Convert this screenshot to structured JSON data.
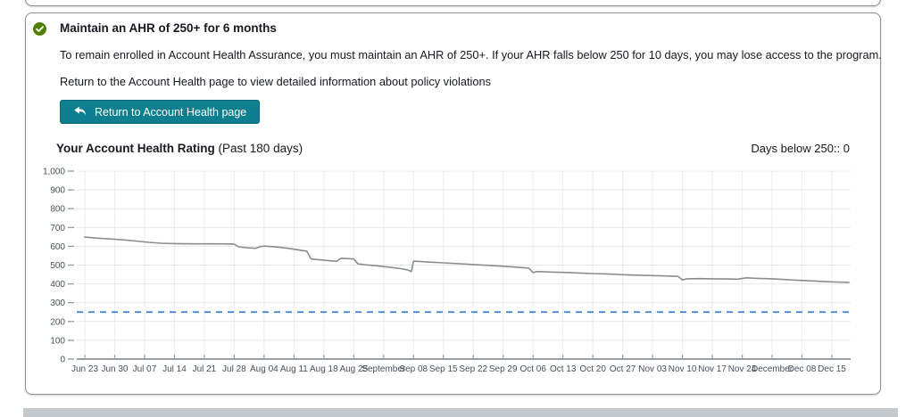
{
  "card": {
    "heading": "Maintain an AHR of 250+ for 6 months",
    "body_line1": "To remain enrolled in Account Health Assurance, you must maintain an AHR of 250+. If your AHR falls below 250 for 10 days, you may lose access to the program.",
    "body_line2": "Return to the Account Health page to view detailed information about policy violations",
    "button_label": "Return to Account Health page",
    "status_icon": "check-circle",
    "status_color": "#538000"
  },
  "chart_header": {
    "title_bold": "Your Account Health Rating",
    "title_suffix": "(Past 180 days)",
    "days_below_label": "Days below 250:: 0"
  },
  "chart_data": {
    "type": "line",
    "title": "Your Account Health Rating (Past 180 days)",
    "ylim": [
      0,
      1000
    ],
    "y_ticks": [
      0,
      100,
      200,
      300,
      400,
      500,
      600,
      700,
      800,
      900,
      1000
    ],
    "y_tick_labels": [
      "0",
      "100",
      "200",
      "300",
      "400",
      "500",
      "600",
      "700",
      "800",
      "900",
      "1,000"
    ],
    "x_tick_labels": [
      "Jun 23",
      "Jun 30",
      "Jul 07",
      "Jul 14",
      "Jul 21",
      "Jul 28",
      "Aug 04",
      "Aug 11",
      "Aug 18",
      "Aug 25",
      "September",
      "Sep 08",
      "Sep 15",
      "Sep 22",
      "Sep 29",
      "Oct 06",
      "Oct 13",
      "Oct 20",
      "Oct 27",
      "Nov 03",
      "Nov 10",
      "Nov 17",
      "Nov 24",
      "December",
      "Dec 08",
      "Dec 15"
    ],
    "x_tick_days": [
      0,
      7,
      14,
      21,
      28,
      35,
      42,
      49,
      56,
      63,
      70,
      77,
      84,
      91,
      98,
      105,
      112,
      119,
      126,
      133,
      140,
      147,
      154,
      161,
      168,
      175
    ],
    "x_span_days": 179,
    "grid": true,
    "threshold": {
      "value": 250,
      "style": "dashed",
      "color": "#3b7dd1"
    },
    "days_below_250": 0,
    "series": [
      {
        "name": "Account Health Rating",
        "color": "#8a8d90",
        "points": [
          [
            0,
            649
          ],
          [
            3,
            643
          ],
          [
            6,
            639
          ],
          [
            9,
            634
          ],
          [
            12,
            628
          ],
          [
            15,
            621
          ],
          [
            18,
            616
          ],
          [
            21,
            614
          ],
          [
            26,
            613
          ],
          [
            31,
            613
          ],
          [
            35,
            612
          ],
          [
            36,
            597
          ],
          [
            38,
            592
          ],
          [
            40,
            589
          ],
          [
            41,
            597
          ],
          [
            42,
            601
          ],
          [
            44,
            598
          ],
          [
            46,
            594
          ],
          [
            48,
            588
          ],
          [
            50,
            581
          ],
          [
            52,
            574
          ],
          [
            53,
            532
          ],
          [
            55,
            528
          ],
          [
            57,
            524
          ],
          [
            59,
            520
          ],
          [
            60,
            536
          ],
          [
            62,
            534
          ],
          [
            63,
            532
          ],
          [
            64,
            506
          ],
          [
            66,
            501
          ],
          [
            68,
            497
          ],
          [
            70,
            492
          ],
          [
            72,
            487
          ],
          [
            74,
            481
          ],
          [
            75.5,
            475
          ],
          [
            76.5,
            466
          ],
          [
            77,
            521
          ],
          [
            80,
            517
          ],
          [
            84,
            512
          ],
          [
            88,
            507
          ],
          [
            91,
            503
          ],
          [
            94,
            499
          ],
          [
            98,
            494
          ],
          [
            101,
            489
          ],
          [
            104,
            484
          ],
          [
            105,
            460
          ],
          [
            106,
            466
          ],
          [
            109,
            463
          ],
          [
            112,
            461
          ],
          [
            116,
            458
          ],
          [
            119,
            455
          ],
          [
            123,
            452
          ],
          [
            126,
            449
          ],
          [
            130,
            446
          ],
          [
            133,
            444
          ],
          [
            136,
            442
          ],
          [
            139,
            440
          ],
          [
            140,
            421
          ],
          [
            141,
            427
          ],
          [
            144,
            428
          ],
          [
            147,
            427
          ],
          [
            150,
            426
          ],
          [
            153,
            425
          ],
          [
            155,
            432
          ],
          [
            157,
            430
          ],
          [
            161,
            427
          ],
          [
            164,
            423
          ],
          [
            167,
            419
          ],
          [
            170,
            416
          ],
          [
            173,
            413
          ],
          [
            176,
            410
          ],
          [
            179,
            408
          ]
        ]
      }
    ]
  },
  "colors": {
    "button_bg": "#0d7f8f",
    "button_border": "#0a6b7a",
    "card_border": "#8d9197",
    "gridline": "#e4e7e9",
    "vertical_gridline": "#eceeef",
    "axis": "#9aa0a6",
    "axis_label": "#47505a",
    "line": "#8a8d90",
    "threshold_blue": "#3b7dd1",
    "success_green": "#538000"
  }
}
